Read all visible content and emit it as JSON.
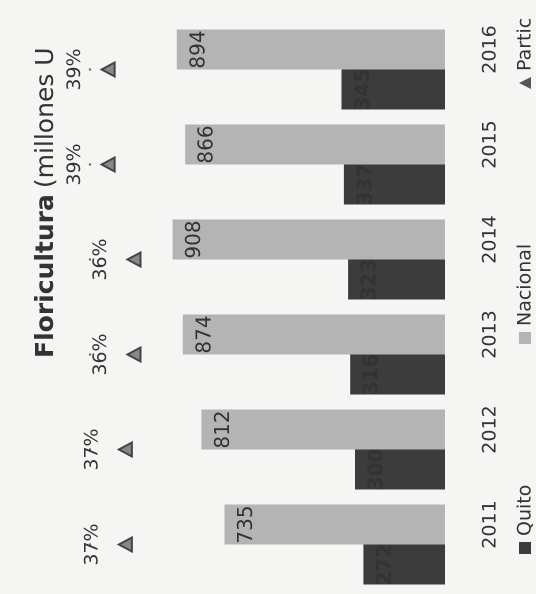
{
  "chart_data": {
    "type": "bar",
    "title": "Floricultura",
    "subtitle": "(millones U",
    "categories": [
      "2011",
      "2012",
      "2013",
      "2014",
      "2015",
      "2016"
    ],
    "ylim": [
      0,
      1000
    ],
    "y2lim": [
      0,
      40
    ],
    "series": [
      {
        "name": "Quito",
        "color": "#3c3c3c",
        "values": [
          272,
          300,
          316,
          323,
          337,
          345
        ]
      },
      {
        "name": "Nacional",
        "color": "#b4b4b4",
        "values": [
          735,
          812,
          874,
          908,
          866,
          894
        ]
      },
      {
        "name": "Partic",
        "color": "#444444",
        "type": "scatter",
        "axis": "y2",
        "values": [
          37,
          37,
          36,
          36,
          39,
          39
        ],
        "value_labels": [
          "37%",
          "37%",
          "36%",
          "36%",
          "39%",
          "39%"
        ]
      }
    ]
  }
}
